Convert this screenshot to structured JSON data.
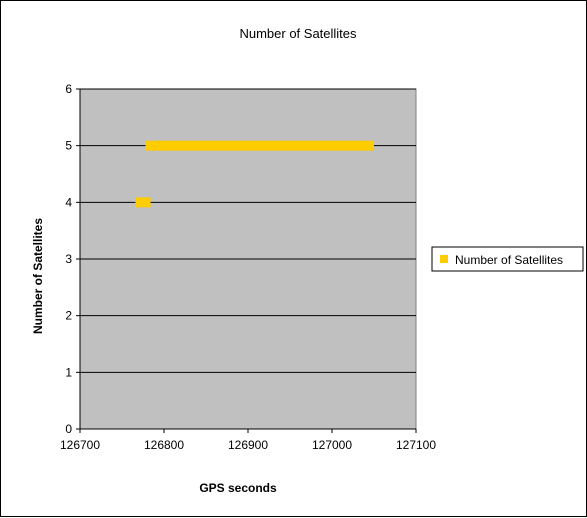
{
  "chart_data": {
    "type": "scatter",
    "title": "Number of Satellites",
    "xlabel": "GPS seconds",
    "ylabel": "Number of Satellites",
    "xlim": [
      126700,
      127100
    ],
    "ylim": [
      0,
      6
    ],
    "xticks": [
      126700,
      126800,
      126900,
      127000,
      127100
    ],
    "yticks": [
      0,
      1,
      2,
      3,
      4,
      5,
      6
    ],
    "grid": {
      "horizontal": true,
      "vertical": false
    },
    "plot_background": "#c0c0c0",
    "legend": {
      "position": "right",
      "entries": [
        "Number of Satellites"
      ]
    },
    "series": [
      {
        "name": "Number of Satellites",
        "color": "#ffcc00",
        "marker": "square",
        "segments": [
          {
            "x_start": 126766,
            "x_end": 126784,
            "y": 4
          },
          {
            "x_start": 126778,
            "x_end": 127050,
            "y": 5
          }
        ]
      }
    ]
  }
}
